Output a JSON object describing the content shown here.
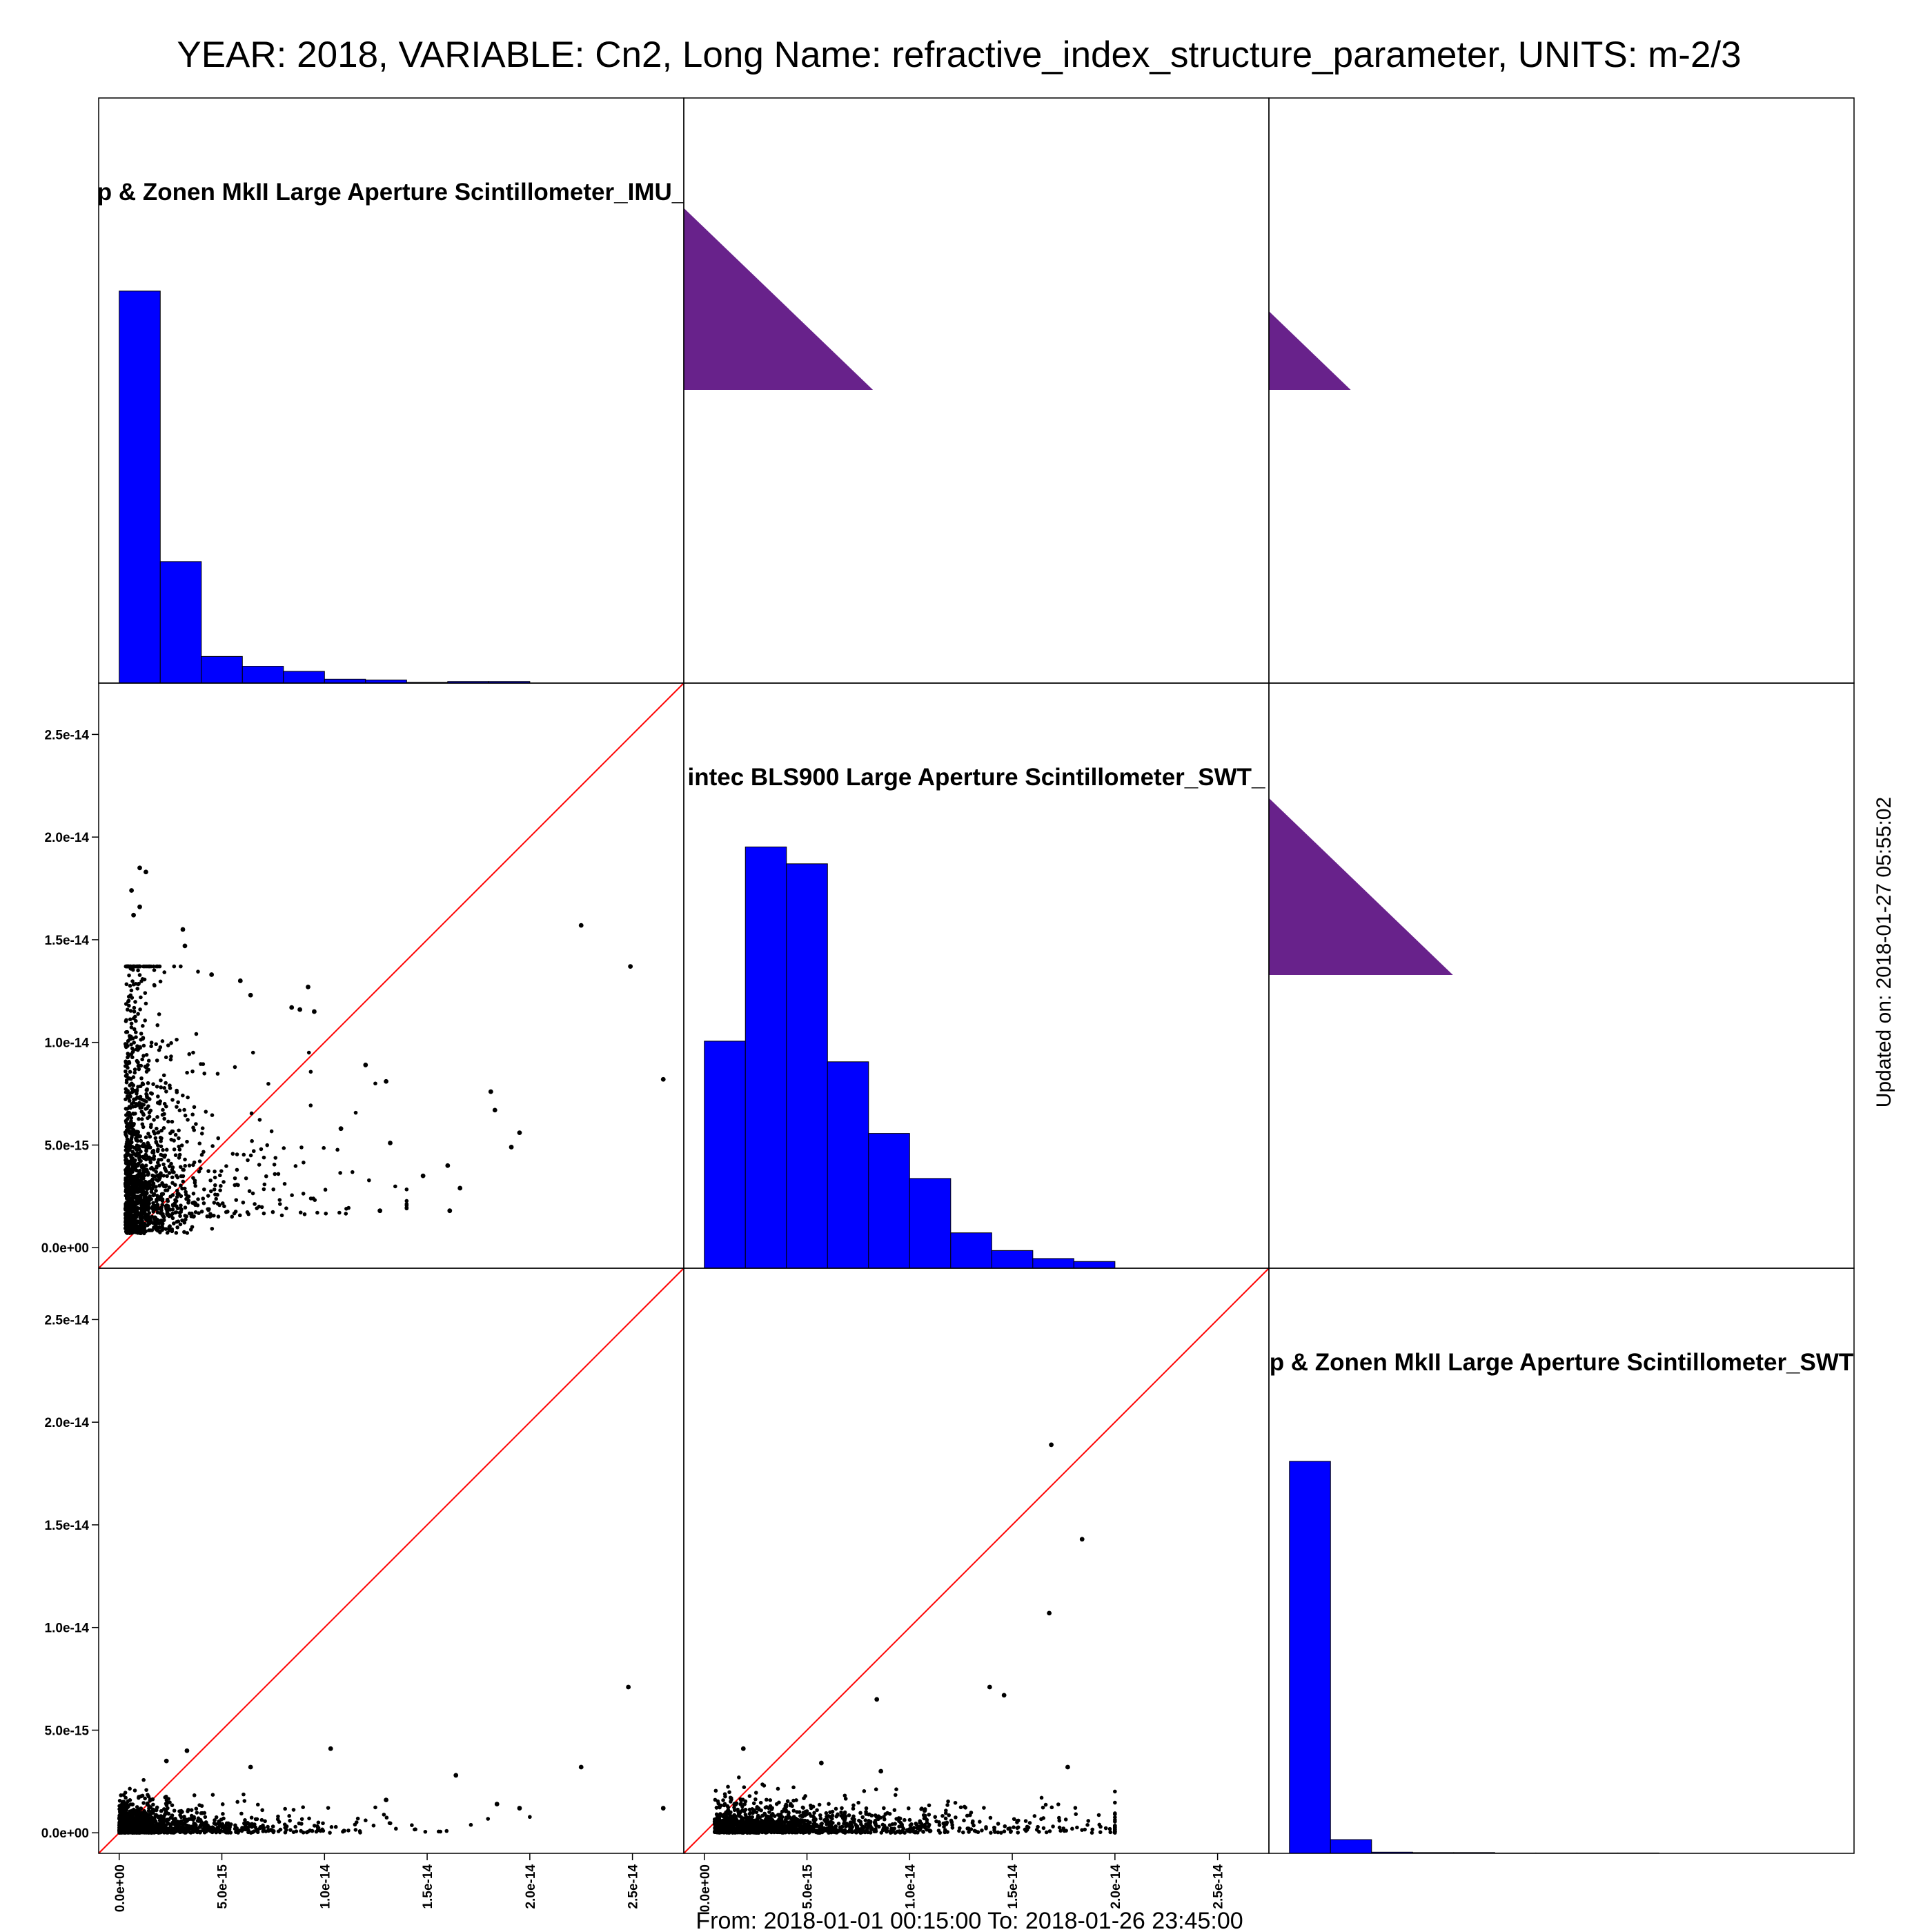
{
  "header": {
    "title": "YEAR: 2018, VARIABLE: Cn2, Long Name: refractive_index_structure_parameter, UNITS: m-2/3"
  },
  "footer": {
    "date_range": "From: 2018-01-01 00:15:00 To: 2018-01-26 23:45:00"
  },
  "side": {
    "updated": "Updated on: 2018-01-27 05:55:02"
  },
  "colors": {
    "histogram": "#0000ff",
    "correlation_triangle": "#68228b",
    "identity_line": "#ff0000",
    "points": "#000000"
  },
  "chart_data": {
    "type": "scatter",
    "layout": "pairs-matrix 3x3",
    "variables": [
      "p & Zonen MkII Large Aperture Scintillometer_IMU_",
      "intec BLS900 Large Aperture Scintillometer_SWT_",
      "p & Zonen MkII Large Aperture Scintillometer_SWT"
    ],
    "axis_ticks": [
      "0.0e+00",
      "5.0e-15",
      "1.0e-14",
      "1.5e-14",
      "2.0e-14",
      "2.5e-14"
    ],
    "axis_tick_values": [
      0,
      5e-15,
      1e-14,
      1.5e-14,
      2e-14,
      2.5e-14
    ],
    "axis_range": [
      -1e-15,
      2.75e-14
    ],
    "grid": false,
    "histograms": [
      {
        "variable": "p & Zonen MkII Large Aperture Scintillometer_IMU_",
        "bin_edges": [
          0,
          2e-15,
          4e-15,
          6e-15,
          8e-15,
          1e-14,
          1.2e-14,
          1.4e-14,
          1.6e-14,
          1.8e-14,
          2e-14
        ],
        "relative_heights": [
          1.0,
          0.31,
          0.068,
          0.043,
          0.03,
          0.01,
          0.008,
          0.002,
          0.004,
          0.004
        ]
      },
      {
        "variable": "intec BLS900 Large Aperture Scintillometer_SWT_",
        "bin_edges": [
          0,
          2e-15,
          4e-15,
          6e-15,
          8e-15,
          1e-14,
          1.2e-14,
          1.4e-14,
          1.6e-14,
          1.8e-14,
          2e-14
        ],
        "relative_heights": [
          0.539,
          1.0,
          0.96,
          0.49,
          0.32,
          0.213,
          0.084,
          0.042,
          0.023,
          0.016
        ]
      },
      {
        "variable": "p & Zonen MkII Large Aperture Scintillometer_SWT",
        "bin_edges": [
          0,
          2e-15,
          4e-15,
          6e-15,
          8e-15,
          1e-14,
          1.2e-14,
          1.4e-14,
          1.6e-14,
          1.8e-14,
          2e-14
        ],
        "relative_heights": [
          1.0,
          0.035,
          0.003,
          0.002,
          0.002,
          0.001,
          0.001,
          0.001,
          0.001,
          0.0
        ]
      }
    ],
    "correlation_triangles": [
      {
        "row": 0,
        "col": 1,
        "relative_size": 0.37
      },
      {
        "row": 0,
        "col": 2,
        "relative_size": 0.16
      },
      {
        "row": 1,
        "col": 2,
        "relative_size": 0.36
      }
    ],
    "scatter_panels": [
      {
        "row": 1,
        "col": 0,
        "x_variable": "p & Zonen MkII Large Aperture Scintillometer_IMU_",
        "y_variable": "intec BLS900 Large Aperture Scintillometer_SWT_",
        "points": [
          [
            2.25e-14,
            1.57e-14
          ],
          [
            2.49e-14,
            1.37e-14
          ],
          [
            2.65e-14,
            8.2e-15
          ],
          [
            1.81e-14,
            7.6e-15
          ],
          [
            1.83e-14,
            6.7e-15
          ],
          [
            1.95e-14,
            5.6e-15
          ],
          [
            1.91e-14,
            4.9e-15
          ],
          [
            1.48e-14,
            3.5e-15
          ],
          [
            1.6e-14,
            4e-15
          ],
          [
            1.61e-14,
            1.8e-15
          ],
          [
            1.66e-14,
            2.9e-15
          ],
          [
            1.2e-14,
            8.9e-15
          ],
          [
            1.3e-14,
            8.1e-15
          ],
          [
            1.32e-14,
            5.1e-15
          ],
          [
            1.27e-14,
            1.8e-15
          ],
          [
            1.08e-14,
            5.8e-15
          ],
          [
            9.5e-15,
            1.15e-14
          ],
          [
            9.2e-15,
            1.27e-14
          ],
          [
            8.8e-15,
            1.16e-14
          ],
          [
            8.4e-15,
            1.17e-14
          ],
          [
            5.9e-15,
            1.3e-14
          ],
          [
            6.4e-15,
            1.23e-14
          ],
          [
            4.5e-15,
            1.33e-14
          ],
          [
            3.2e-15,
            1.47e-14
          ],
          [
            3.1e-15,
            1.55e-14
          ],
          [
            1.3e-15,
            1.83e-14
          ],
          [
            1e-15,
            1.85e-14
          ],
          [
            6e-16,
            1.74e-14
          ],
          [
            1e-15,
            1.66e-14
          ],
          [
            7e-16,
            1.62e-14
          ]
        ]
      },
      {
        "row": 2,
        "col": 0,
        "x_variable": "p & Zonen MkII Large Aperture Scintillometer_IMU_",
        "y_variable": "p & Zonen MkII Large Aperture Scintillometer_SWT",
        "points": [
          [
            2.48e-14,
            7.1e-15
          ],
          [
            2.25e-14,
            3.2e-15
          ],
          [
            2.65e-14,
            1.2e-15
          ],
          [
            1.03e-14,
            4.1e-15
          ],
          [
            1.64e-14,
            2.8e-15
          ],
          [
            1.84e-14,
            1.4e-15
          ],
          [
            1.95e-14,
            1.2e-15
          ],
          [
            1.3e-14,
            1.6e-15
          ],
          [
            2.3e-15,
            3.5e-15
          ],
          [
            3.3e-15,
            4e-15
          ],
          [
            6.4e-15,
            3.2e-15
          ]
        ]
      },
      {
        "row": 2,
        "col": 1,
        "x_variable": "intec BLS900 Large Aperture Scintillometer_SWT_",
        "y_variable": "p & Zonen MkII Large Aperture Scintillometer_SWT",
        "points": [
          [
            1.69e-14,
            1.89e-14
          ],
          [
            1.84e-14,
            1.43e-14
          ],
          [
            1.68e-14,
            1.07e-14
          ],
          [
            8.4e-15,
            6.5e-15
          ],
          [
            1.39e-14,
            7.1e-15
          ],
          [
            1.46e-14,
            6.7e-15
          ],
          [
            1.77e-14,
            3.2e-15
          ],
          [
            1.9e-15,
            4.1e-15
          ],
          [
            5.7e-15,
            3.4e-15
          ],
          [
            8.6e-15,
            3e-15
          ]
        ]
      }
    ]
  }
}
